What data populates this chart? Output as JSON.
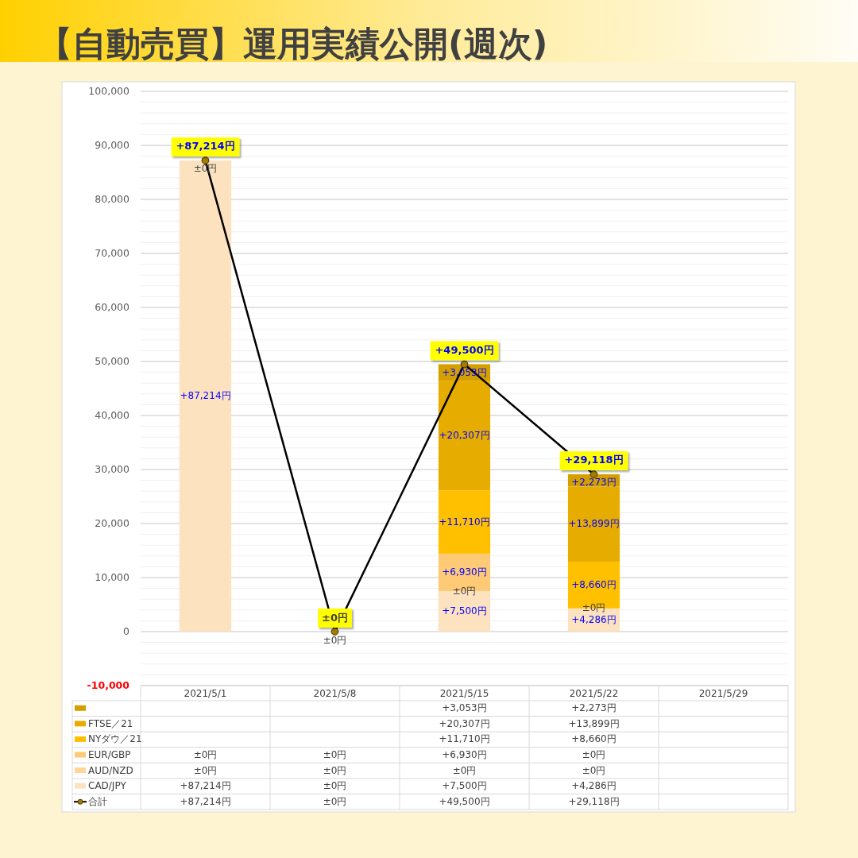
{
  "chart_data": {
    "type": "bar",
    "title": "【自動売買】運用実績公開(週次)",
    "stacked": true,
    "grid": true,
    "legend": "bottom",
    "marker": "circle",
    "line_style": "solid",
    "categories": [
      "2021/5/1",
      "2021/5/8",
      "2021/5/15",
      "2021/5/22",
      "2021/5/29"
    ],
    "ylim": [
      -10000,
      100000
    ],
    "yticks": [
      {
        "value": -10000,
        "label": "-10,000"
      },
      {
        "value": -8000,
        "label": null
      },
      {
        "value": -6000,
        "label": null
      },
      {
        "value": -4000,
        "label": null
      },
      {
        "value": -2000,
        "label": null
      },
      0,
      {
        "value": 2000,
        "label": null
      },
      {
        "value": 4000,
        "label": null
      },
      {
        "value": 6000,
        "label": null
      },
      {
        "value": 8000,
        "label": null
      },
      {
        "value": 10000,
        "label": "10,000"
      },
      {
        "value": 12000,
        "label": null
      },
      {
        "value": 14000,
        "label": null
      },
      {
        "value": 16000,
        "label": null
      },
      {
        "value": 18000,
        "label": null
      },
      {
        "value": 20000,
        "label": "20,000"
      },
      {
        "value": 22000,
        "label": null
      },
      {
        "value": 24000,
        "label": null
      },
      {
        "value": 26000,
        "label": null
      },
      {
        "value": 28000,
        "label": null
      },
      {
        "value": 30000,
        "label": "30,000"
      },
      {
        "value": 32000,
        "label": null
      },
      {
        "value": 34000,
        "label": null
      },
      {
        "value": 36000,
        "label": null
      },
      {
        "value": 38000,
        "label": null
      },
      {
        "value": 40000,
        "label": "40,000"
      },
      {
        "value": 42000,
        "label": null
      },
      {
        "value": 44000,
        "label": null
      },
      {
        "value": 46000,
        "label": null
      },
      {
        "value": 48000,
        "label": null
      },
      {
        "value": 50000,
        "label": "50,000"
      },
      {
        "value": 52000,
        "label": null
      },
      {
        "value": 54000,
        "label": null
      },
      {
        "value": 56000,
        "label": null
      },
      {
        "value": 58000,
        "label": null
      },
      {
        "value": 60000,
        "label": "60,000"
      },
      {
        "value": 62000,
        "label": null
      },
      {
        "value": 64000,
        "label": null
      },
      {
        "value": 66000,
        "label": null
      },
      {
        "value": 68000,
        "label": null
      },
      {
        "value": 70000,
        "label": "70,000"
      },
      {
        "value": 72000,
        "label": null
      },
      {
        "value": 74000,
        "label": null
      },
      {
        "value": 76000,
        "label": null
      },
      {
        "value": 78000,
        "label": null
      },
      {
        "value": 80000,
        "label": "80,000"
      },
      {
        "value": 82000,
        "label": null
      },
      {
        "value": 84000,
        "label": null
      },
      {
        "value": 86000,
        "label": null
      },
      {
        "value": 88000,
        "label": null
      },
      {
        "value": 90000,
        "label": "90,000"
      },
      {
        "value": 92000,
        "label": null
      },
      {
        "value": 94000,
        "label": null
      },
      {
        "value": 96000,
        "label": null
      },
      {
        "value": 98000,
        "label": null
      },
      {
        "value": 100000,
        "label": "100,000"
      }
    ],
    "series": [
      {
        "name": "CAD/JPY",
        "color": "#fde2c0",
        "values": [
          87214,
          0,
          7500,
          4286,
          null
        ],
        "value_labels": [
          "+87,214円",
          "±0円",
          "+7,500円",
          "+4,286円",
          null
        ]
      },
      {
        "name": "AUD/NZD",
        "color": "#ffd699",
        "values": [
          0,
          0,
          0,
          0,
          null
        ],
        "value_labels": [
          "±0円",
          "±0円",
          "±0円",
          "±0円",
          null
        ]
      },
      {
        "name": "EUR/GBP",
        "color": "#ffca75",
        "values": [
          0,
          0,
          6930,
          0,
          null
        ],
        "value_labels": [
          "±0円",
          "±0円",
          "+6,930円",
          "±0円",
          null
        ]
      },
      {
        "name": "NYダウ／21",
        "color": "#ffc000",
        "values": [
          null,
          null,
          11710,
          8660,
          null
        ],
        "value_labels": [
          null,
          null,
          "+11,710円",
          "+8,660円",
          null
        ]
      },
      {
        "name": "FTSE／21",
        "color": "#e6ad00",
        "values": [
          null,
          null,
          20307,
          13899,
          null
        ],
        "value_labels": [
          null,
          null,
          "+20,307円",
          "+13,899円",
          null
        ]
      },
      {
        "color": "#d4a000",
        "values": [
          null,
          null,
          3053,
          2273,
          null
        ],
        "value_labels": [
          null,
          null,
          "+3,053円",
          "+2,273円",
          null
        ]
      },
      {
        "name": "合計",
        "type": "line",
        "color": "#000000",
        "values": [
          87214,
          0,
          49500,
          29118,
          null
        ],
        "value_labels": [
          "+87,214円",
          "±0円",
          "+49,500円",
          "+29,118円",
          null
        ]
      }
    ]
  }
}
